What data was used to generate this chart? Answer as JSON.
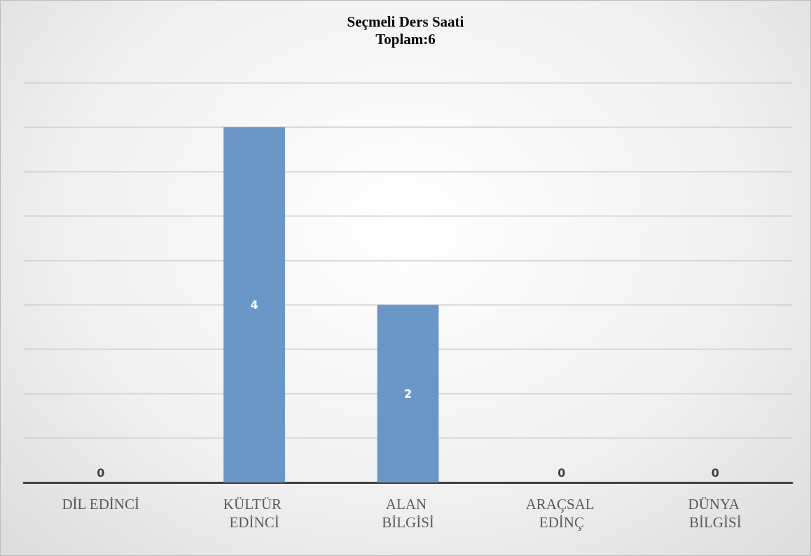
{
  "chart_data": {
    "type": "bar",
    "title": "Seçmeli Ders Saati",
    "subtitle": "Toplam:6",
    "categories": [
      "DİL EDİNCİ",
      "KÜLTÜR EDİNCİ",
      "ALAN BİLGİSİ",
      "ARAÇSAL EDİNÇ",
      "DÜNYA BİLGİSİ"
    ],
    "values": [
      0,
      4,
      2,
      0,
      0
    ],
    "color": "#6a96c8",
    "ylim": [
      0,
      4.5
    ],
    "yticks": [
      {
        "value": 0,
        "label": null
      },
      {
        "value": 0.5,
        "label": null
      },
      {
        "value": 1,
        "label": null
      },
      {
        "value": 1.5,
        "label": null
      },
      {
        "value": 2,
        "label": null
      },
      {
        "value": 2.5,
        "label": null
      },
      {
        "value": 3,
        "label": null
      },
      {
        "value": 3.5,
        "label": null
      },
      {
        "value": 4,
        "label": null
      },
      {
        "value": 4.5,
        "label": null
      }
    ],
    "grid": "y",
    "data_labels": true,
    "tick_labels": "x"
  }
}
